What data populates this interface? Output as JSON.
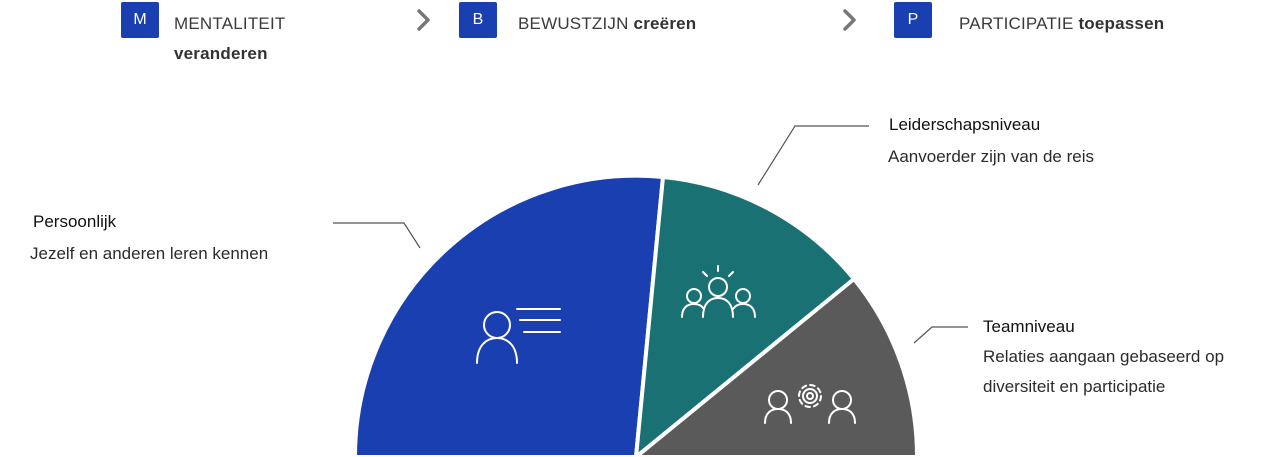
{
  "steps": [
    {
      "letter": "M",
      "word1": "MENTALITEIT",
      "word2": "veranderen"
    },
    {
      "letter": "B",
      "word1": "BEWUSTZIJN",
      "word2": "creëren"
    },
    {
      "letter": "P",
      "word1": "PARTICIPATIE",
      "word2": "toepassen"
    }
  ],
  "segments": [
    {
      "title": "Persoonlijk",
      "description": "Jezelf en anderen leren kennen",
      "color": "#1a3fb0",
      "icon": "person-card-icon"
    },
    {
      "title": "Leiderschapsniveau",
      "description": "Aanvoerder zijn van de reis",
      "color": "#1a7173",
      "icon": "group-leader-icon"
    },
    {
      "title": "Teamniveau",
      "description_line1": "Relaties aangaan gebaseerd op",
      "description_line2": "diversiteit en participatie",
      "color": "#5a5a5a",
      "icon": "team-gear-icon"
    }
  ],
  "colors": {
    "badge": "#1a3fb0",
    "chevron": "#777777",
    "connector": "#555555"
  }
}
